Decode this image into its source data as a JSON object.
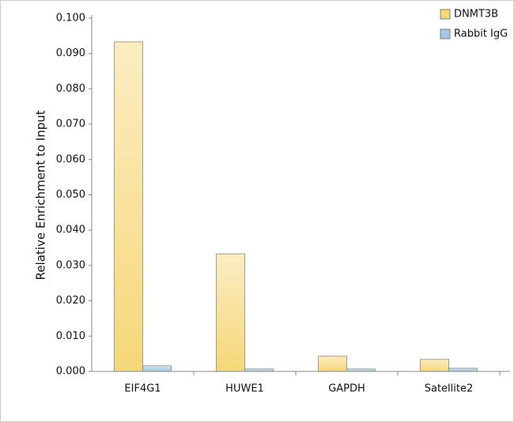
{
  "chart_data": {
    "type": "bar",
    "y_label": "Relative Enrichment to Input",
    "categories": [
      "EIF4G1",
      "HUWE1",
      "GAPDH",
      "Satellite2"
    ],
    "series": [
      {
        "name": "DNMT3B",
        "color": "#f6d778",
        "values": [
          0.0933,
          0.0333,
          0.0043,
          0.0034
        ]
      },
      {
        "name": "Rabbit IgG",
        "color": "#a4c6df",
        "values": [
          0.0016,
          0.0007,
          0.0007,
          0.0009
        ]
      }
    ],
    "ylim": [
      0,
      0.1
    ],
    "yticks": [
      {
        "value": 0,
        "label": "0.000"
      },
      {
        "value": 0.01,
        "label": "0.010"
      },
      {
        "value": 0.02,
        "label": "0.020"
      },
      {
        "value": 0.03,
        "label": "0.030"
      },
      {
        "value": 0.04,
        "label": "0.040"
      },
      {
        "value": 0.05,
        "label": "0.050"
      },
      {
        "value": 0.06,
        "label": "0.060"
      },
      {
        "value": 0.07,
        "label": "0.070"
      },
      {
        "value": 0.08,
        "label": "0.080"
      },
      {
        "value": 0.09,
        "label": "0.090"
      },
      {
        "value": 0.1,
        "label": "0.100"
      }
    ],
    "legend": "top-right"
  }
}
